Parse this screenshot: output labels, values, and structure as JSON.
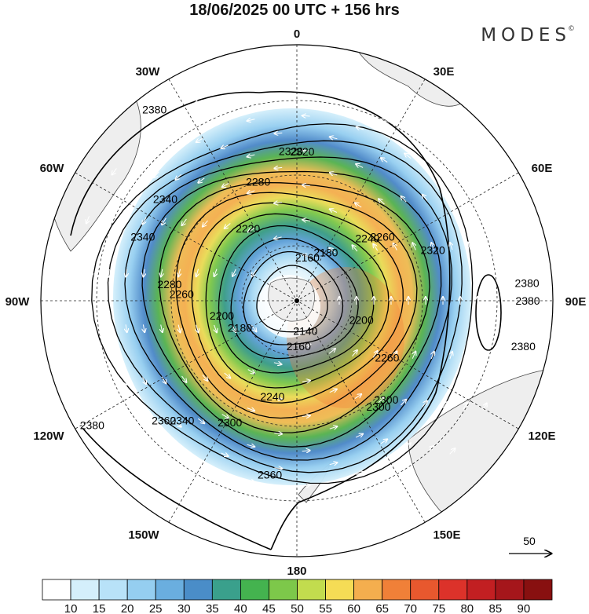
{
  "title": "18/06/2025  00 UTC  + 156 hrs",
  "brand": "MODES",
  "brand_mark": "©",
  "map": {
    "projection": "south polar stereographic",
    "longitude_labels": {
      "top": "0",
      "top_left": "30W",
      "top_right": "30E",
      "upper_left": "60W",
      "upper_right": "60E",
      "left": "90W",
      "right": "90E",
      "lower_left": "120W",
      "lower_right": "120E",
      "bottom_left": "150W",
      "bottom_right": "150E",
      "bottom": "180"
    },
    "contour_labels": [
      "2380",
      "2360",
      "2320",
      "2300",
      "2280",
      "2260",
      "2240",
      "2220",
      "2200",
      "2180",
      "2160",
      "2140",
      "2340",
      "2320",
      "2300",
      "2280",
      "2260",
      "2200",
      "2180",
      "2160",
      "2340",
      "2380",
      "2340",
      "2320",
      "2300",
      "2260",
      "2240",
      "2360",
      "2380",
      "2380",
      "2380"
    ],
    "contour_levels": [
      2140,
      2160,
      2180,
      2200,
      2220,
      2240,
      2260,
      2280,
      2300,
      2320,
      2340,
      2360,
      2380
    ],
    "reference_vector": "50"
  },
  "colorbar": {
    "ticks": [
      "10",
      "15",
      "20",
      "25",
      "30",
      "35",
      "40",
      "45",
      "50",
      "55",
      "60",
      "65",
      "70",
      "75",
      "80",
      "85",
      "90"
    ],
    "colors": [
      "#ffffff",
      "#d4effb",
      "#b8e2f8",
      "#95cef0",
      "#6aaedf",
      "#4a8dc8",
      "#3aa08c",
      "#44b34f",
      "#7dc84a",
      "#c2dc4e",
      "#f5dc55",
      "#f4ae4e",
      "#f08038",
      "#e8582e",
      "#dc322a",
      "#c21f22",
      "#a5161b",
      "#881010"
    ]
  },
  "colors": {
    "coast": "#444444",
    "land": "#eeeeee",
    "contour": "#000000",
    "vector": "#ffffff",
    "grid": "#222222"
  }
}
